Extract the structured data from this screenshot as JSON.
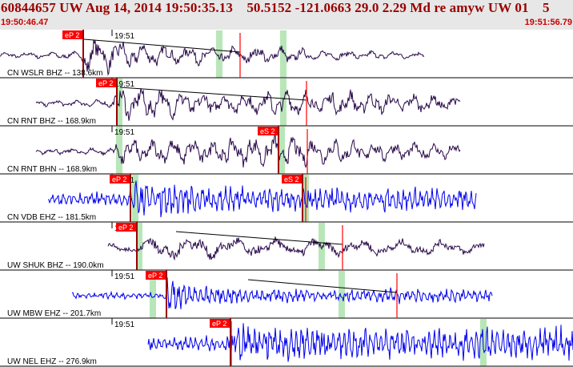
{
  "header": {
    "title": "60844657 UW Aug 14, 2014 19:50:35.13    50.5152 -121.0663 29.0 2.29 Md re amyw UW 01    5",
    "start_time": "19:50:46.47",
    "end_time": "19:51:56.79"
  },
  "tick_label": "19:51",
  "colors": {
    "header_bg": "#e7e7e7",
    "header_text": "#990000",
    "time_text": "#cc0000",
    "trace_dark": "#2a0a4a",
    "trace_blue": "#0000ee",
    "pick_box": "#ff0000",
    "window_band": "#b8e6b8"
  },
  "traces": [
    {
      "label": "CN WSLR BHZ -- 138.6km",
      "color": "#2a0a4a",
      "picks": [
        {
          "text": "eP 2"
        }
      ]
    },
    {
      "label": "CN RNT BHZ -- 168.9km",
      "color": "#2a0a4a",
      "picks": [
        {
          "text": "eP 2"
        }
      ]
    },
    {
      "label": "CN RNT BHN -- 168.9km",
      "color": "#2a0a4a",
      "picks": [
        {
          "text": "eS 2"
        }
      ]
    },
    {
      "label": "CN VDB EHZ -- 181.5km",
      "color": "#0000ee",
      "picks": [
        {
          "text": "eP 2"
        },
        {
          "text": "eS 2"
        }
      ]
    },
    {
      "label": "UW SHUK BHZ -- 190.0km",
      "color": "#2a0a4a",
      "picks": [
        {
          "text": "eP 2"
        }
      ]
    },
    {
      "label": "UW MBW EHZ -- 201.7km",
      "color": "#0000ee",
      "picks": [
        {
          "text": "eP 2"
        }
      ]
    },
    {
      "label": "UW NEL EHZ -- 276.9km",
      "color": "#0000ee",
      "picks": [
        {
          "text": "eP 2"
        }
      ]
    }
  ]
}
